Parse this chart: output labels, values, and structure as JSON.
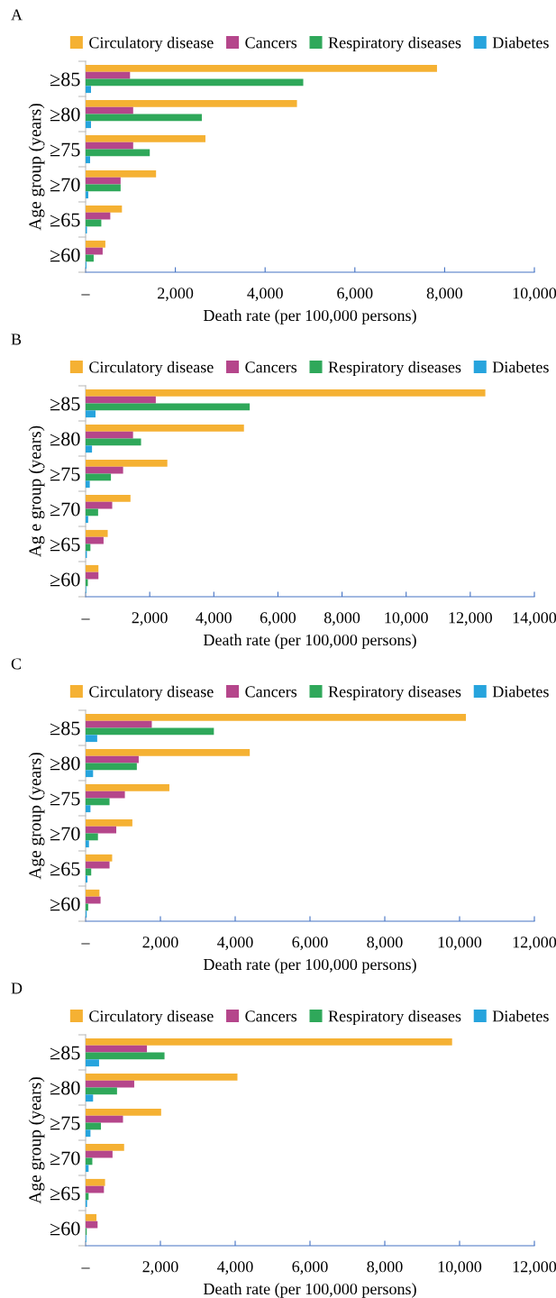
{
  "chart_data": [
    {
      "type": "bar",
      "orientation": "horizontal",
      "title": "A",
      "xlabel": "Death rate (per 100,000 persons)",
      "ylabel": "Age group (years)",
      "categories": [
        "≥85",
        "≥80",
        "≥75",
        "≥70",
        "≥65",
        "≥60"
      ],
      "legend": "top",
      "grid": false,
      "xlim": [
        0,
        10000
      ],
      "xticks": [
        {
          "value": 0,
          "label": "–"
        },
        {
          "value": 2000,
          "label": "2,000"
        },
        {
          "value": 4000,
          "label": "4,000"
        },
        {
          "value": 6000,
          "label": "6,000"
        },
        {
          "value": 8000,
          "label": "8,000"
        },
        {
          "value": 10000,
          "label": "10,000"
        }
      ],
      "series": [
        {
          "name": "Circulatory disease",
          "color": "#f5b133",
          "values": [
            7830,
            4710,
            2670,
            1570,
            810,
            440
          ]
        },
        {
          "name": "Cancers",
          "color": "#b5468b",
          "values": [
            990,
            1060,
            1060,
            780,
            550,
            380
          ]
        },
        {
          "name": "Respiratory diseases",
          "color": "#2fa85a",
          "values": [
            4850,
            2590,
            1430,
            780,
            350,
            180
          ]
        },
        {
          "name": "Diabetes",
          "color": "#27a4dd",
          "values": [
            120,
            120,
            100,
            60,
            30,
            20
          ]
        }
      ]
    },
    {
      "type": "bar",
      "orientation": "horizontal",
      "title": "B",
      "xlabel": "Death rate (per 100,000 persons)",
      "ylabel": "Ag e group (years)",
      "categories": [
        "≥85",
        "≥80",
        "≥75",
        "≥70",
        "≥65",
        "≥60"
      ],
      "legend": "top",
      "grid": false,
      "xlim": [
        0,
        14000
      ],
      "xticks": [
        {
          "value": 0,
          "label": "–"
        },
        {
          "value": 2000,
          "label": "2,000"
        },
        {
          "value": 4000,
          "label": "4,000"
        },
        {
          "value": 6000,
          "label": "6,000"
        },
        {
          "value": 8000,
          "label": "8,000"
        },
        {
          "value": 10000,
          "label": "10,000"
        },
        {
          "value": 12000,
          "label": "12,000"
        },
        {
          "value": 14000,
          "label": "14,000"
        }
      ],
      "series": [
        {
          "name": "Circulatory disease",
          "color": "#f5b133",
          "values": [
            12470,
            4940,
            2550,
            1400,
            690,
            400
          ]
        },
        {
          "name": "Cancers",
          "color": "#b5468b",
          "values": [
            2190,
            1480,
            1170,
            830,
            560,
            400
          ]
        },
        {
          "name": "Respiratory diseases",
          "color": "#2fa85a",
          "values": [
            5120,
            1730,
            790,
            390,
            150,
            70
          ]
        },
        {
          "name": "Diabetes",
          "color": "#27a4dd",
          "values": [
            310,
            200,
            130,
            80,
            40,
            20
          ]
        }
      ]
    },
    {
      "type": "bar",
      "orientation": "horizontal",
      "title": "C",
      "xlabel": "Death rate (per 100,000 persons)",
      "ylabel": "Age group (years)",
      "categories": [
        "≥85",
        "≥80",
        "≥75",
        "≥70",
        "≥65",
        "≥60"
      ],
      "legend": "top",
      "grid": false,
      "xlim": [
        0,
        12000
      ],
      "xticks": [
        {
          "value": 0,
          "label": "–"
        },
        {
          "value": 2000,
          "label": "2,000"
        },
        {
          "value": 4000,
          "label": "4,000"
        },
        {
          "value": 6000,
          "label": "6,000"
        },
        {
          "value": 8000,
          "label": "8,000"
        },
        {
          "value": 10000,
          "label": "10,000"
        },
        {
          "value": 12000,
          "label": "12,000"
        }
      ],
      "series": [
        {
          "name": "Circulatory disease",
          "color": "#f5b133",
          "values": [
            10170,
            4390,
            2240,
            1250,
            710,
            370
          ]
        },
        {
          "name": "Cancers",
          "color": "#b5468b",
          "values": [
            1770,
            1420,
            1050,
            820,
            640,
            400
          ]
        },
        {
          "name": "Respiratory diseases",
          "color": "#2fa85a",
          "values": [
            3430,
            1370,
            640,
            330,
            150,
            70
          ]
        },
        {
          "name": "Diabetes",
          "color": "#27a4dd",
          "values": [
            310,
            200,
            130,
            90,
            50,
            30
          ]
        }
      ]
    },
    {
      "type": "bar",
      "orientation": "horizontal",
      "title": "D",
      "xlabel": "Death rate (per 100,000 persons)",
      "ylabel": "Age group (years)",
      "categories": [
        "≥85",
        "≥80",
        "≥75",
        "≥70",
        "≥65",
        "≥60"
      ],
      "legend": "top",
      "grid": false,
      "xlim": [
        0,
        12000
      ],
      "xticks": [
        {
          "value": 0,
          "label": "–"
        },
        {
          "value": 2000,
          "label": "2,000"
        },
        {
          "value": 4000,
          "label": "4,000"
        },
        {
          "value": 6000,
          "label": "6,000"
        },
        {
          "value": 8000,
          "label": "8,000"
        },
        {
          "value": 10000,
          "label": "10,000"
        },
        {
          "value": 12000,
          "label": "12,000"
        }
      ],
      "series": [
        {
          "name": "Circulatory disease",
          "color": "#f5b133",
          "values": [
            9800,
            4060,
            2020,
            1030,
            520,
            290
          ]
        },
        {
          "name": "Cancers",
          "color": "#b5468b",
          "values": [
            1640,
            1300,
            1000,
            720,
            490,
            320
          ]
        },
        {
          "name": "Respiratory diseases",
          "color": "#2fa85a",
          "values": [
            2110,
            840,
            410,
            180,
            80,
            30
          ]
        },
        {
          "name": "Diabetes",
          "color": "#27a4dd",
          "values": [
            360,
            200,
            130,
            80,
            40,
            20
          ]
        }
      ]
    }
  ]
}
